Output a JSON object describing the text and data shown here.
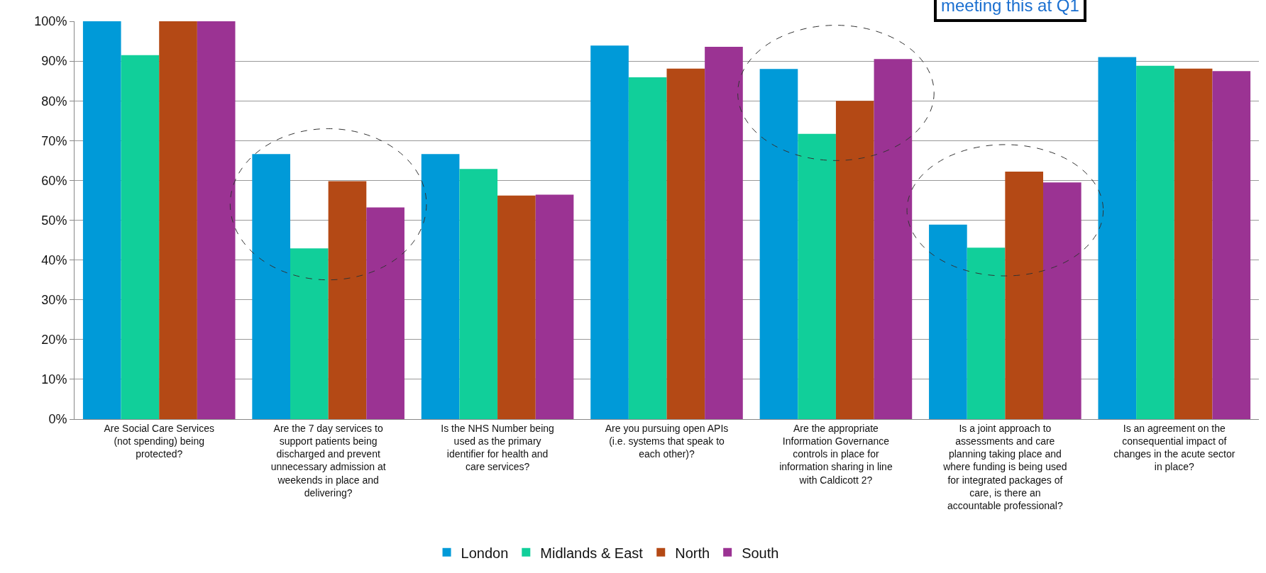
{
  "chart_data": {
    "type": "bar",
    "categories": [
      "Are Social Care Services (not spending) being protected?",
      "Are the 7 day services to support patients being discharged and prevent unnecessary admission at weekends in place and delivering?",
      "Is the NHS Number being used as the primary identifier for health and care services?",
      "Are you pursuing open APIs (i.e. systems that speak to each other)?",
      "Are the appropriate Information Governance controls in place for information sharing in line with Caldicott 2?",
      "Is a joint approach to assessments and care planning taking place and where funding is being used for integrated packages of care, is there an accountable professional?",
      "Is an agreement on the consequential impact of changes in the acute sector in place?"
    ],
    "series": [
      {
        "name": "London",
        "color": "#009ad8",
        "values": [
          100,
          66.6,
          66.6,
          93.9,
          88.0,
          48.9,
          91.0
        ]
      },
      {
        "name": "Midlands & East",
        "color": "#11cf9a",
        "values": [
          91.5,
          42.9,
          62.9,
          85.9,
          71.7,
          43.1,
          88.8
        ]
      },
      {
        "name": "North",
        "color": "#b44915",
        "values": [
          100,
          59.8,
          56.2,
          88.1,
          80.0,
          62.2,
          88.1
        ]
      },
      {
        "name": "South",
        "color": "#9b3393",
        "values": [
          100,
          53.2,
          56.4,
          93.6,
          90.5,
          59.5,
          87.5
        ]
      }
    ],
    "ylim": [
      0,
      100
    ],
    "yticks": [
      {
        "value": 0,
        "label": "0%"
      },
      {
        "value": 10,
        "label": "10%"
      },
      {
        "value": 20,
        "label": "20%"
      },
      {
        "value": 30,
        "label": "30%"
      },
      {
        "value": 40,
        "label": "40%"
      },
      {
        "value": 50,
        "label": "50%"
      },
      {
        "value": 60,
        "label": "60%"
      },
      {
        "value": 70,
        "label": "70%"
      },
      {
        "value": 80,
        "label": "80%"
      },
      {
        "value": 90,
        "label": "90%"
      },
      {
        "value": 100,
        "label": "100%"
      }
    ],
    "grid": "y",
    "legend": "bottom",
    "annotations": [
      "meeting this at Q1"
    ]
  }
}
